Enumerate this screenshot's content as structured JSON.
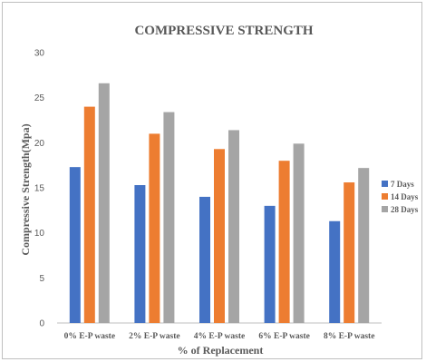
{
  "chart_data": {
    "type": "bar",
    "title": "COMPRESSIVE STRENGTH",
    "xlabel": "% of Replacement",
    "ylabel": "Compressive Strength(Mpa)",
    "ylim": [
      0,
      30
    ],
    "yticks": [
      0,
      5,
      10,
      15,
      20,
      25,
      30
    ],
    "grid": false,
    "legend_position": "right",
    "categories": [
      "0% E-P waste",
      "2% E-P waste",
      "4% E-P waste",
      "6% E-P waste",
      "8% E-P waste"
    ],
    "series": [
      {
        "name": "7 Days",
        "color": "#4472C4",
        "values": [
          17.3,
          15.3,
          14.0,
          13.0,
          11.3
        ]
      },
      {
        "name": "14 Days",
        "color": "#ED7D31",
        "values": [
          24.0,
          21.0,
          19.3,
          18.0,
          15.6
        ]
      },
      {
        "name": "28 Days",
        "color": "#A5A5A5",
        "values": [
          26.6,
          23.4,
          21.4,
          19.9,
          17.2
        ]
      }
    ],
    "axis_color": "#bfbfbf"
  }
}
